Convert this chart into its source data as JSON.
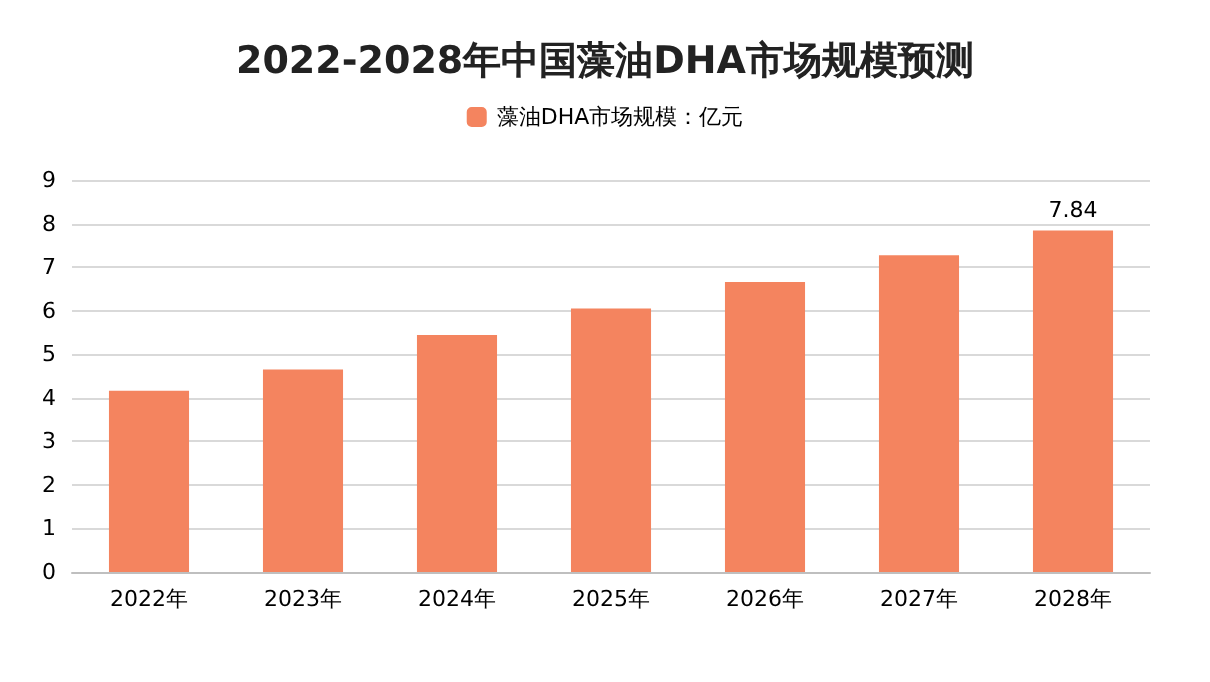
{
  "chart_data": {
    "type": "bar",
    "title": "2022-2028年中国藻油DHA市场规模预测",
    "categories": [
      "2022年",
      "2023年",
      "2024年",
      "2025年",
      "2026年",
      "2027年",
      "2028年"
    ],
    "series": [
      {
        "name": "藻油DHA市场规模：亿元",
        "color": "#f4845f",
        "values": [
          4.16,
          4.65,
          5.44,
          6.05,
          6.66,
          7.27,
          7.84
        ],
        "value_labels": [
          null,
          null,
          null,
          null,
          null,
          null,
          "7.84"
        ]
      }
    ],
    "ylim": [
      0,
      9
    ],
    "yticks": [
      0,
      1,
      2,
      3,
      4,
      5,
      6,
      7,
      8,
      9
    ],
    "grid": "y",
    "legend": "top"
  }
}
